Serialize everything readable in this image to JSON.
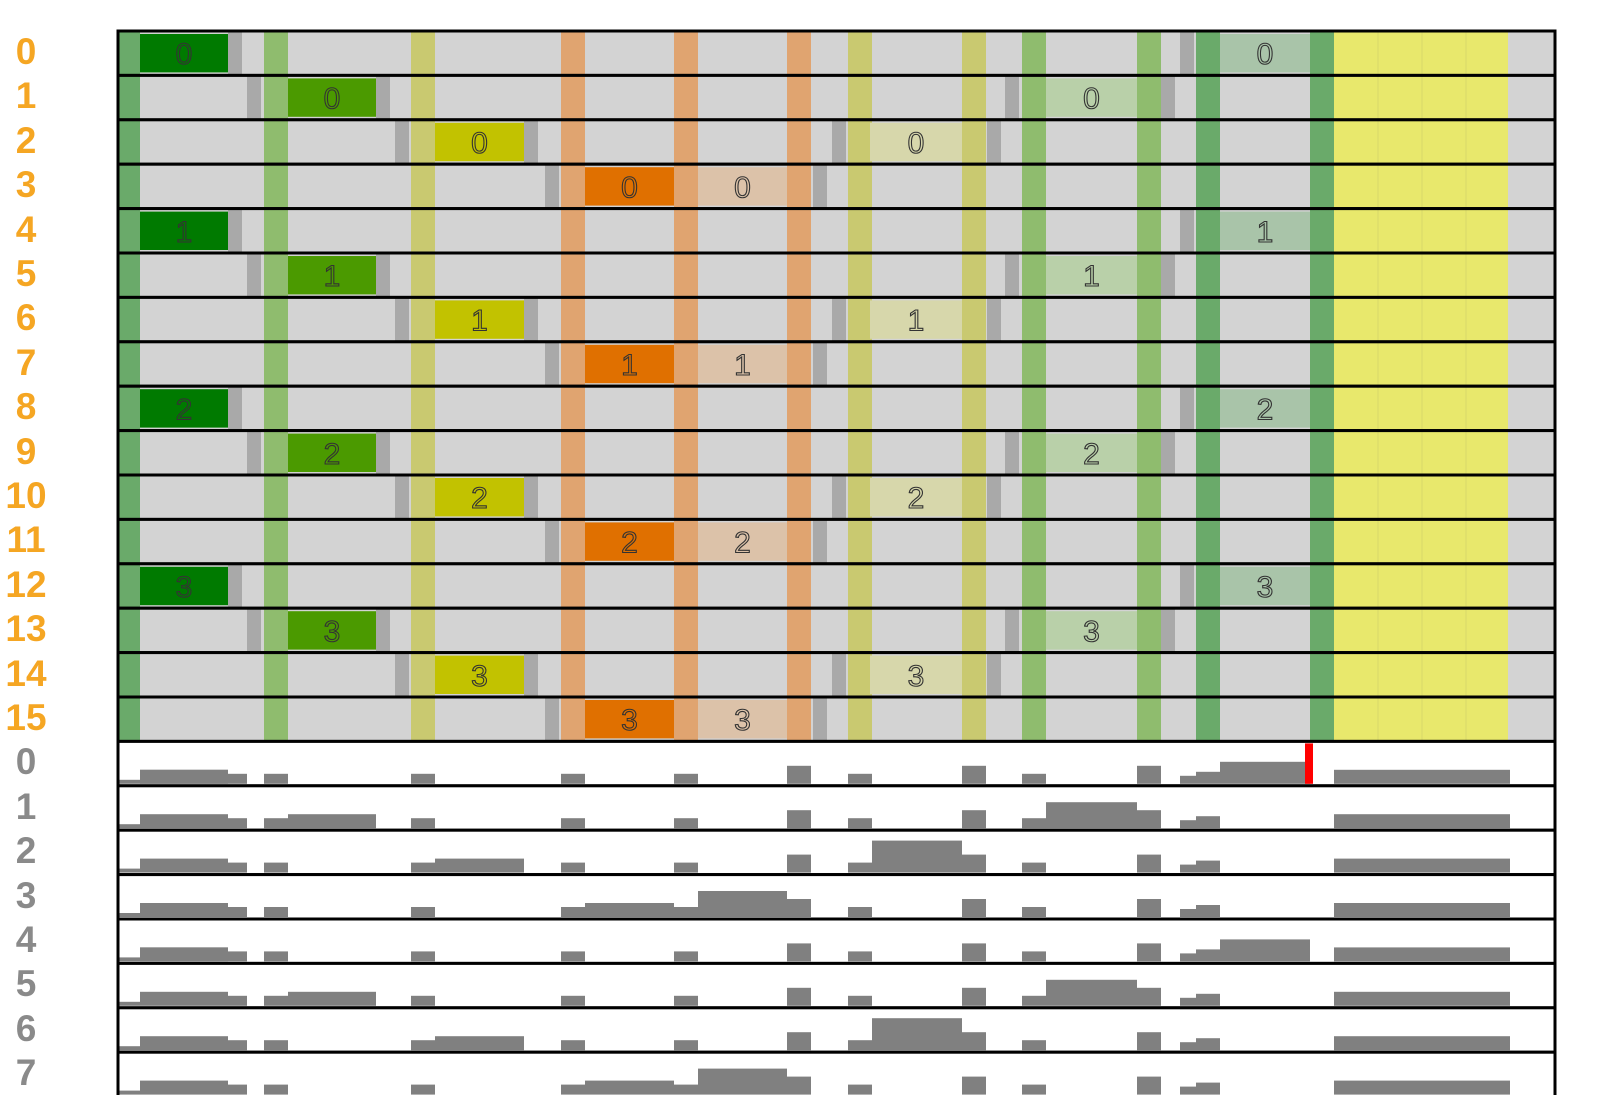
{
  "colors": {
    "lane_label": "#f5a623",
    "hist_label": "#8a8a8a",
    "lane_background": "#d3d3d3",
    "gap": "#a9a9a9",
    "hist_bar": "#808080",
    "marker": "#ff0000",
    "stage_bands": [
      "#6aaa6a",
      "#8fbc6e",
      "#c9c970",
      "#e0a470",
      "#e0a470",
      "#e0a470",
      "#c9c970",
      "#c9c970",
      "#8fbc6e",
      "#8fbc6e",
      "#6aaa6a",
      "#6aaa6a"
    ],
    "block_dark": [
      "#007a00",
      "#4b9a00",
      "#c2c200",
      "#e07000"
    ],
    "block_light": [
      "#a9c4a9",
      "#b9d0a9",
      "#d7d7ab",
      "#dcc2a9"
    ],
    "buffer": "#e8e86c"
  },
  "lanes": [
    {
      "label": "0",
      "stage": 0,
      "micro": "0"
    },
    {
      "label": "1",
      "stage": 1,
      "micro": "0"
    },
    {
      "label": "2",
      "stage": 2,
      "micro": "0"
    },
    {
      "label": "3",
      "stage": 3,
      "micro": "0"
    },
    {
      "label": "4",
      "stage": 0,
      "micro": "1"
    },
    {
      "label": "5",
      "stage": 1,
      "micro": "1"
    },
    {
      "label": "6",
      "stage": 2,
      "micro": "1"
    },
    {
      "label": "7",
      "stage": 3,
      "micro": "1"
    },
    {
      "label": "8",
      "stage": 0,
      "micro": "2"
    },
    {
      "label": "9",
      "stage": 1,
      "micro": "2"
    },
    {
      "label": "10",
      "stage": 2,
      "micro": "2"
    },
    {
      "label": "11",
      "stage": 3,
      "micro": "2"
    },
    {
      "label": "12",
      "stage": 0,
      "micro": "3"
    },
    {
      "label": "13",
      "stage": 1,
      "micro": "3"
    },
    {
      "label": "14",
      "stage": 2,
      "micro": "3"
    },
    {
      "label": "15",
      "stage": 3,
      "micro": "3"
    }
  ],
  "histogram_rows": [
    {
      "label": "0",
      "offset": 0,
      "marker": true
    },
    {
      "label": "1",
      "offset": 1,
      "marker": false
    },
    {
      "label": "2",
      "offset": 2,
      "marker": false
    },
    {
      "label": "3",
      "offset": 3,
      "marker": false
    },
    {
      "label": "4",
      "offset": 0,
      "marker": false
    },
    {
      "label": "5",
      "offset": 1,
      "marker": false
    },
    {
      "label": "6",
      "offset": 2,
      "marker": false
    },
    {
      "label": "7",
      "offset": 3,
      "marker": false
    }
  ]
}
